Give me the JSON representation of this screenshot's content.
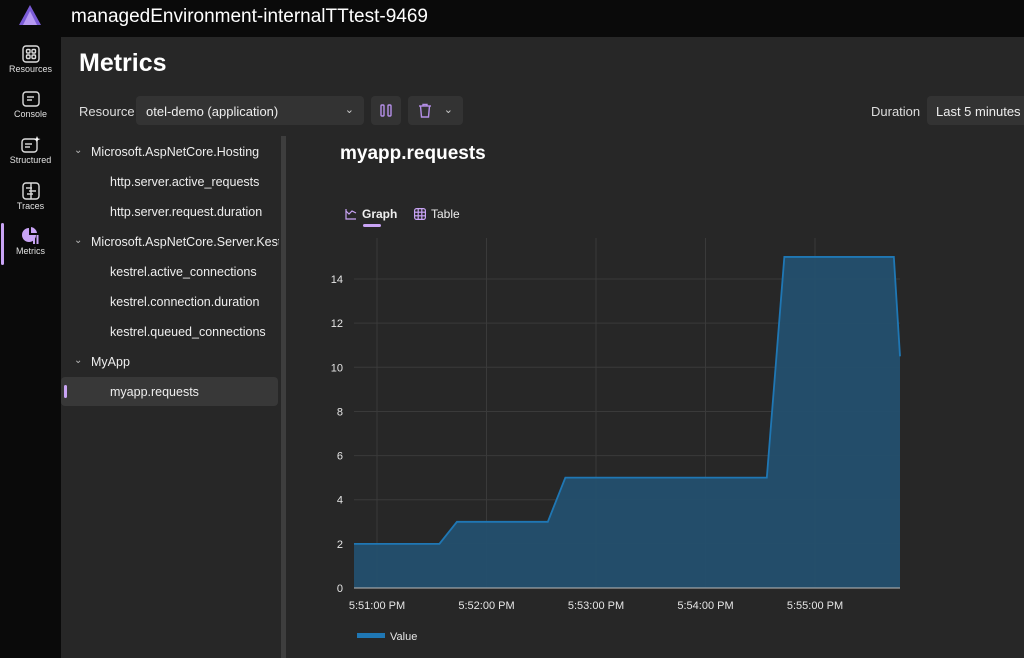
{
  "header": {
    "title": "managedEnvironment-internalTTtest-9469"
  },
  "nav": [
    {
      "label": "Resources",
      "icon": "resources-icon"
    },
    {
      "label": "Console",
      "icon": "console-icon"
    },
    {
      "label": "Structured",
      "icon": "structured-logs-icon"
    },
    {
      "label": "Traces",
      "icon": "traces-icon"
    },
    {
      "label": "Metrics",
      "icon": "metrics-icon",
      "active": true
    }
  ],
  "page": {
    "title": "Metrics",
    "resource_label": "Resource",
    "resource_value": "otel-demo (application)",
    "duration_label": "Duration",
    "duration_value": "Last 5 minutes"
  },
  "tree": [
    {
      "label": "Microsoft.AspNetCore.Hosting",
      "type": "group"
    },
    {
      "label": "http.server.active_requests",
      "type": "leaf"
    },
    {
      "label": "http.server.request.duration",
      "type": "leaf"
    },
    {
      "label": "Microsoft.AspNetCore.Server.Kestrel",
      "type": "group"
    },
    {
      "label": "kestrel.active_connections",
      "type": "leaf"
    },
    {
      "label": "kestrel.connection.duration",
      "type": "leaf"
    },
    {
      "label": "kestrel.queued_connections",
      "type": "leaf"
    },
    {
      "label": "MyApp",
      "type": "group"
    },
    {
      "label": "myapp.requests",
      "type": "leaf",
      "selected": true
    }
  ],
  "metric": {
    "title": "myapp.requests",
    "tabs": [
      "Graph",
      "Table"
    ],
    "active_tab": "Graph"
  },
  "colors": {
    "accent": "#c9a4f5",
    "series": "#1f77b4",
    "series_fill": "#234f6e"
  },
  "chart_data": {
    "type": "area",
    "title": "myapp.requests",
    "xlabel": "",
    "ylabel": "",
    "x_unit": "minutes after 5:51:00 PM",
    "x": [
      -0.21,
      0.57,
      0.73,
      1.56,
      1.72,
      3.56,
      3.72,
      4.72,
      4.78
    ],
    "series": [
      {
        "name": "Value",
        "values": [
          2,
          2,
          3,
          3,
          5,
          5,
          15,
          15,
          10.5
        ]
      }
    ],
    "xlim": [
      -0.21,
      4.78
    ],
    "ylim": [
      0,
      15.5
    ],
    "x_ticks": [
      {
        "v": 0,
        "label": "5:51:00 PM"
      },
      {
        "v": 1,
        "label": "5:52:00 PM"
      },
      {
        "v": 2,
        "label": "5:53:00 PM"
      },
      {
        "v": 3,
        "label": "5:54:00 PM"
      },
      {
        "v": 4,
        "label": "5:55:00 PM"
      }
    ],
    "y_ticks": [
      0,
      2,
      4,
      6,
      8,
      10,
      12,
      14
    ],
    "grid": true,
    "legend": "bottom-left"
  }
}
